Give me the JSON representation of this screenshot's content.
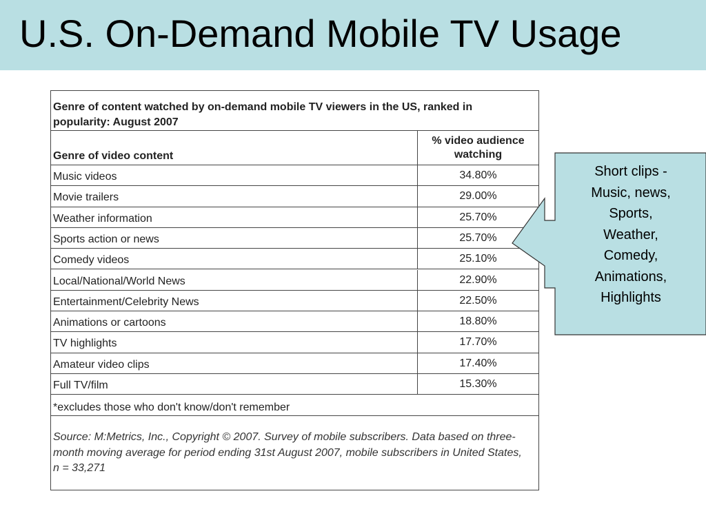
{
  "slide": {
    "title": "U.S. On-Demand Mobile TV Usage"
  },
  "table": {
    "caption": "Genre of content watched by on-demand mobile TV viewers in the US, ranked in popularity:  August 2007",
    "col_genre_header": "Genre of video content",
    "col_pct_header_line1": "% video audience",
    "col_pct_header_line2": "watching",
    "rows": [
      {
        "genre": "Music videos",
        "pct": "34.80%"
      },
      {
        "genre": "Movie trailers",
        "pct": "29.00%"
      },
      {
        "genre": "Weather information",
        "pct": "25.70%"
      },
      {
        "genre": "Sports action or news",
        "pct": "25.70%"
      },
      {
        "genre": "Comedy videos",
        "pct": "25.10%"
      },
      {
        "genre": "Local/National/World News",
        "pct": "22.90%"
      },
      {
        "genre": "Entertainment/Celebrity News",
        "pct": "22.50%"
      },
      {
        "genre": "Animations or cartoons",
        "pct": "18.80%"
      },
      {
        "genre": "TV highlights",
        "pct": "17.70%"
      },
      {
        "genre": "Amateur video clips",
        "pct": "17.40%"
      },
      {
        "genre": "Full TV/film",
        "pct": "15.30%"
      }
    ],
    "footnote": "*excludes those who don't know/don't remember",
    "source": "Source: M:Metrics, Inc., Copyright © 2007. Survey of mobile subscribers. Data based on three-month moving average for period ending 31st August 2007, mobile subscribers in United States, n = 33,271"
  },
  "callout": {
    "lines": [
      "Short clips -",
      "Music, news,",
      "Sports,",
      "Weather,",
      "Comedy,",
      "Animations,",
      "Highlights"
    ]
  },
  "colors": {
    "title_bar": "#b9dfe3",
    "callout_fill": "#b9dfe3"
  }
}
